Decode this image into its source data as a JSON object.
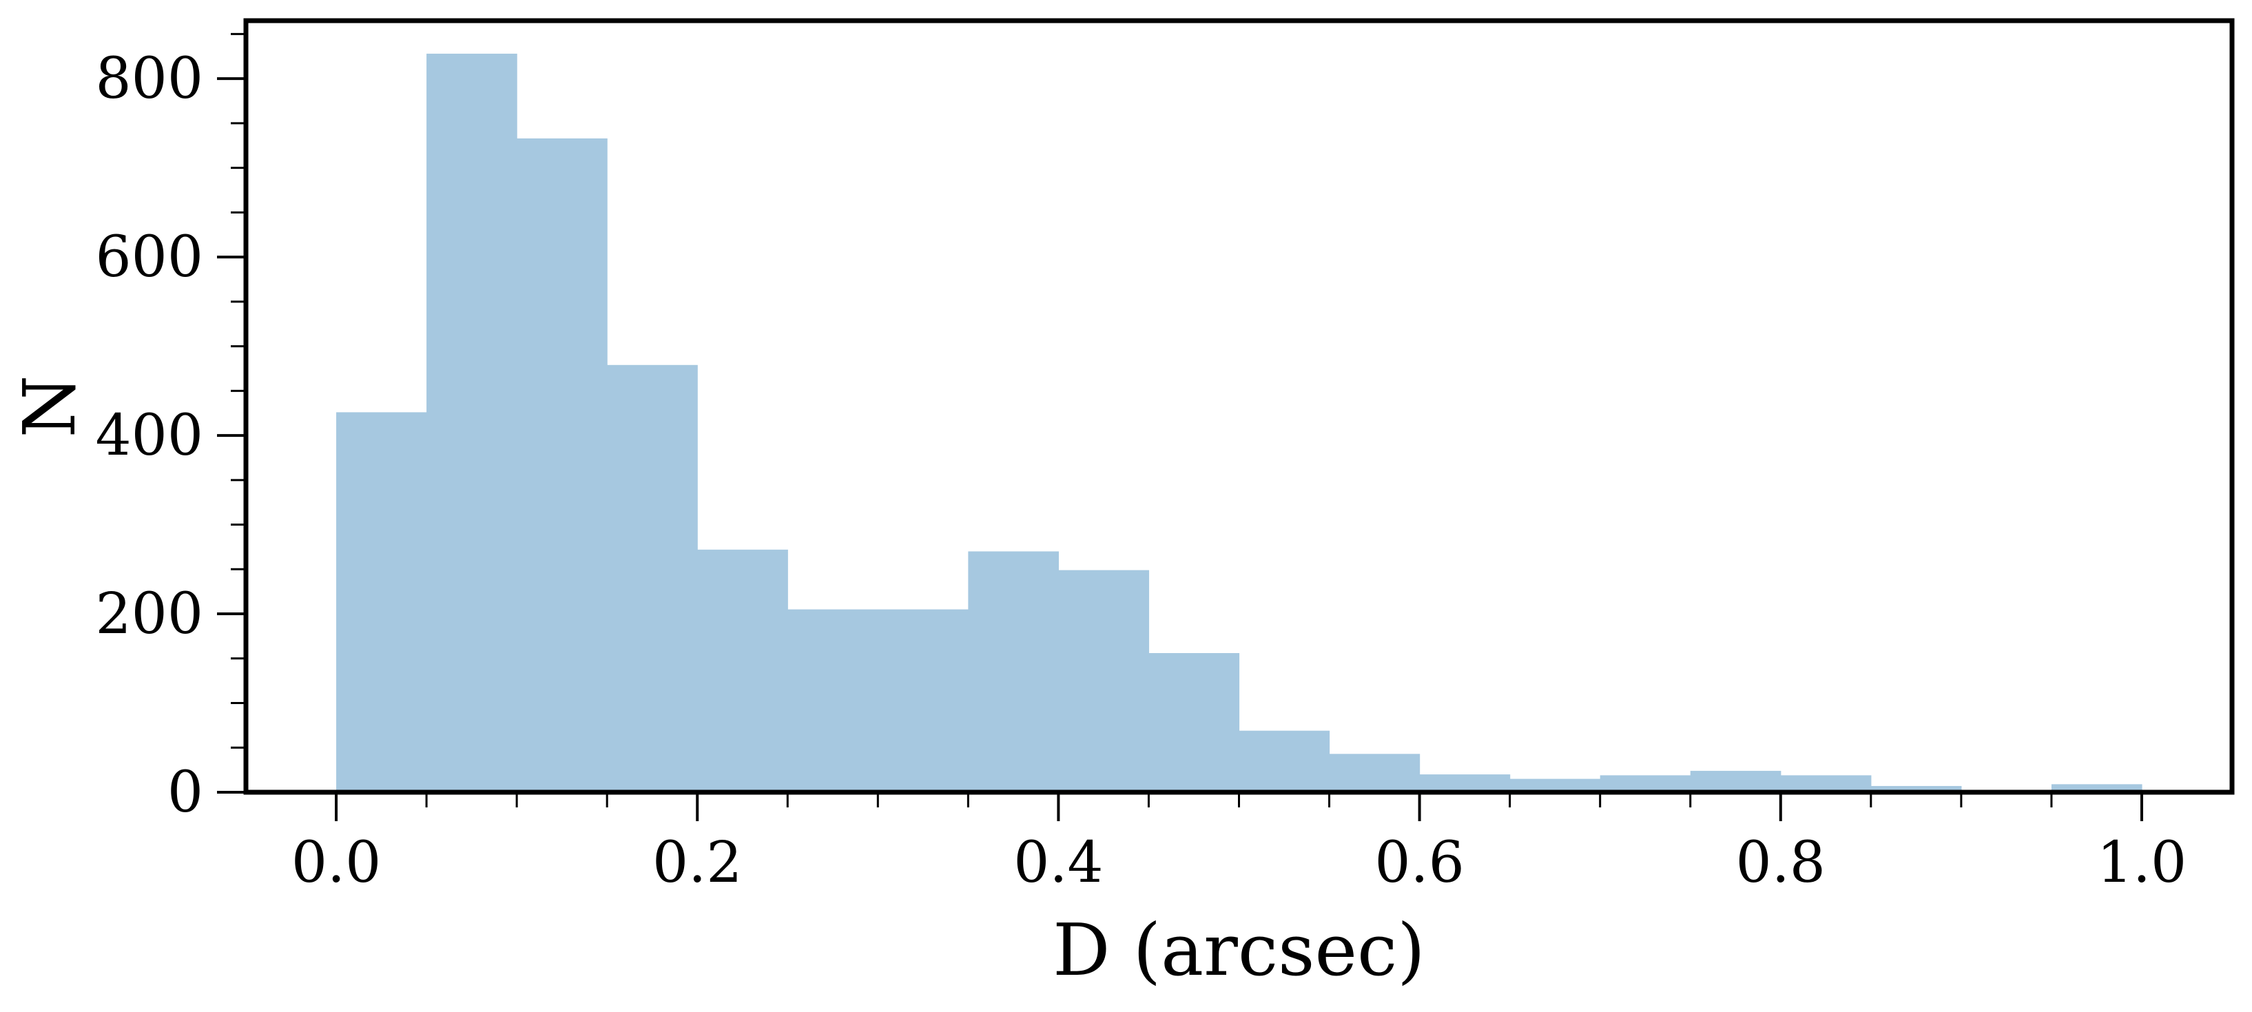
{
  "chart_data": {
    "type": "bar",
    "histogram": true,
    "bin_edges": [
      0.0,
      0.05,
      0.1,
      0.15,
      0.2,
      0.25,
      0.3,
      0.35,
      0.4,
      0.45,
      0.5,
      0.55,
      0.6,
      0.65,
      0.7,
      0.75,
      0.8,
      0.85,
      0.9,
      0.95,
      1.0
    ],
    "values": [
      426,
      828,
      733,
      479,
      272,
      205,
      205,
      270,
      249,
      156,
      69,
      43,
      20,
      15,
      19,
      24,
      19,
      7,
      1,
      9
    ],
    "xlabel": "D (arcsec)",
    "ylabel": "N",
    "title": "",
    "xlim": [
      -0.05,
      1.05
    ],
    "ylim": [
      0,
      865
    ],
    "xticks": [
      0.0,
      0.2,
      0.4,
      0.6,
      0.8,
      1.0
    ],
    "xtick_labels": [
      "0.0",
      "0.2",
      "0.4",
      "0.6",
      "0.8",
      "1.0"
    ],
    "xminor_step": 0.05,
    "yticks": [
      0,
      200,
      400,
      600,
      800
    ],
    "ytick_labels": [
      "0",
      "200",
      "400",
      "600",
      "800"
    ],
    "yminor_step": 50,
    "bar_color": "#a6c8e0",
    "grid": false,
    "legend": "none"
  }
}
